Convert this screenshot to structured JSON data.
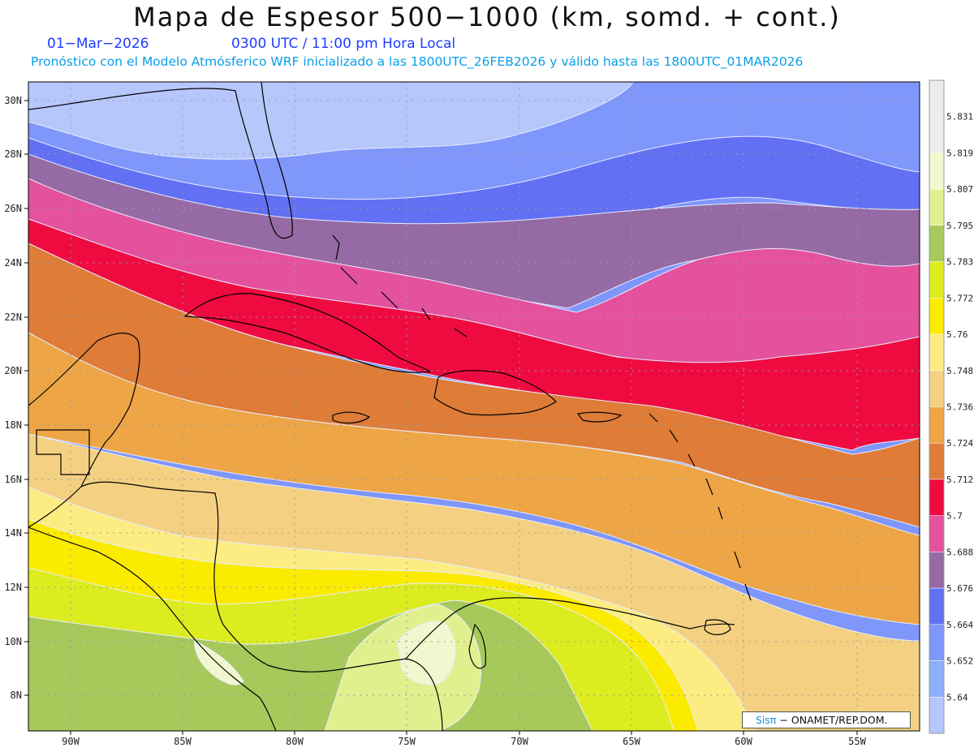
{
  "header": {
    "title": "Mapa de Espesor 500−1000 (km, somd. + cont.)",
    "date": "01−Mar−2026",
    "time": "0300 UTC / 11:00 pm Hora Local",
    "subtitle": "Pronóstico con el Modelo Atmósferico WRF inicializado a las 1800UTC_26FEB2026 y válido hasta las  1800UTC_01MAR2026"
  },
  "map": {
    "lat_labels": [
      "30N",
      "28N",
      "26N",
      "24N",
      "22N",
      "20N",
      "18N",
      "16N",
      "14N",
      "12N",
      "10N",
      "8N"
    ],
    "lon_labels": [
      "90W",
      "85W",
      "80W",
      "75W",
      "70W",
      "65W",
      "60W",
      "55W"
    ]
  },
  "colorbar": {
    "labels": [
      "5.831",
      "5.819",
      "5.807",
      "5.795",
      "5.783",
      "5.772",
      "5.76",
      "5.748",
      "5.736",
      "5.724",
      "5.712",
      "5.7",
      "5.688",
      "5.676",
      "5.664",
      "5.652",
      "5.64"
    ],
    "colors": [
      "#ededed",
      "#f3f7cf",
      "#e1f08f",
      "#a7c95b",
      "#dcec1f",
      "#fbeb00",
      "#fcec82",
      "#f4d182",
      "#eea545",
      "#de7c38",
      "#ef0b40",
      "#e4519d",
      "#966aa4",
      "#6270f4",
      "#7f96fb",
      "#8daefb",
      "#b6c7fc"
    ]
  },
  "credit": {
    "brand": "Sisπ",
    "text": "− ONAMET/REP.DOM."
  }
}
